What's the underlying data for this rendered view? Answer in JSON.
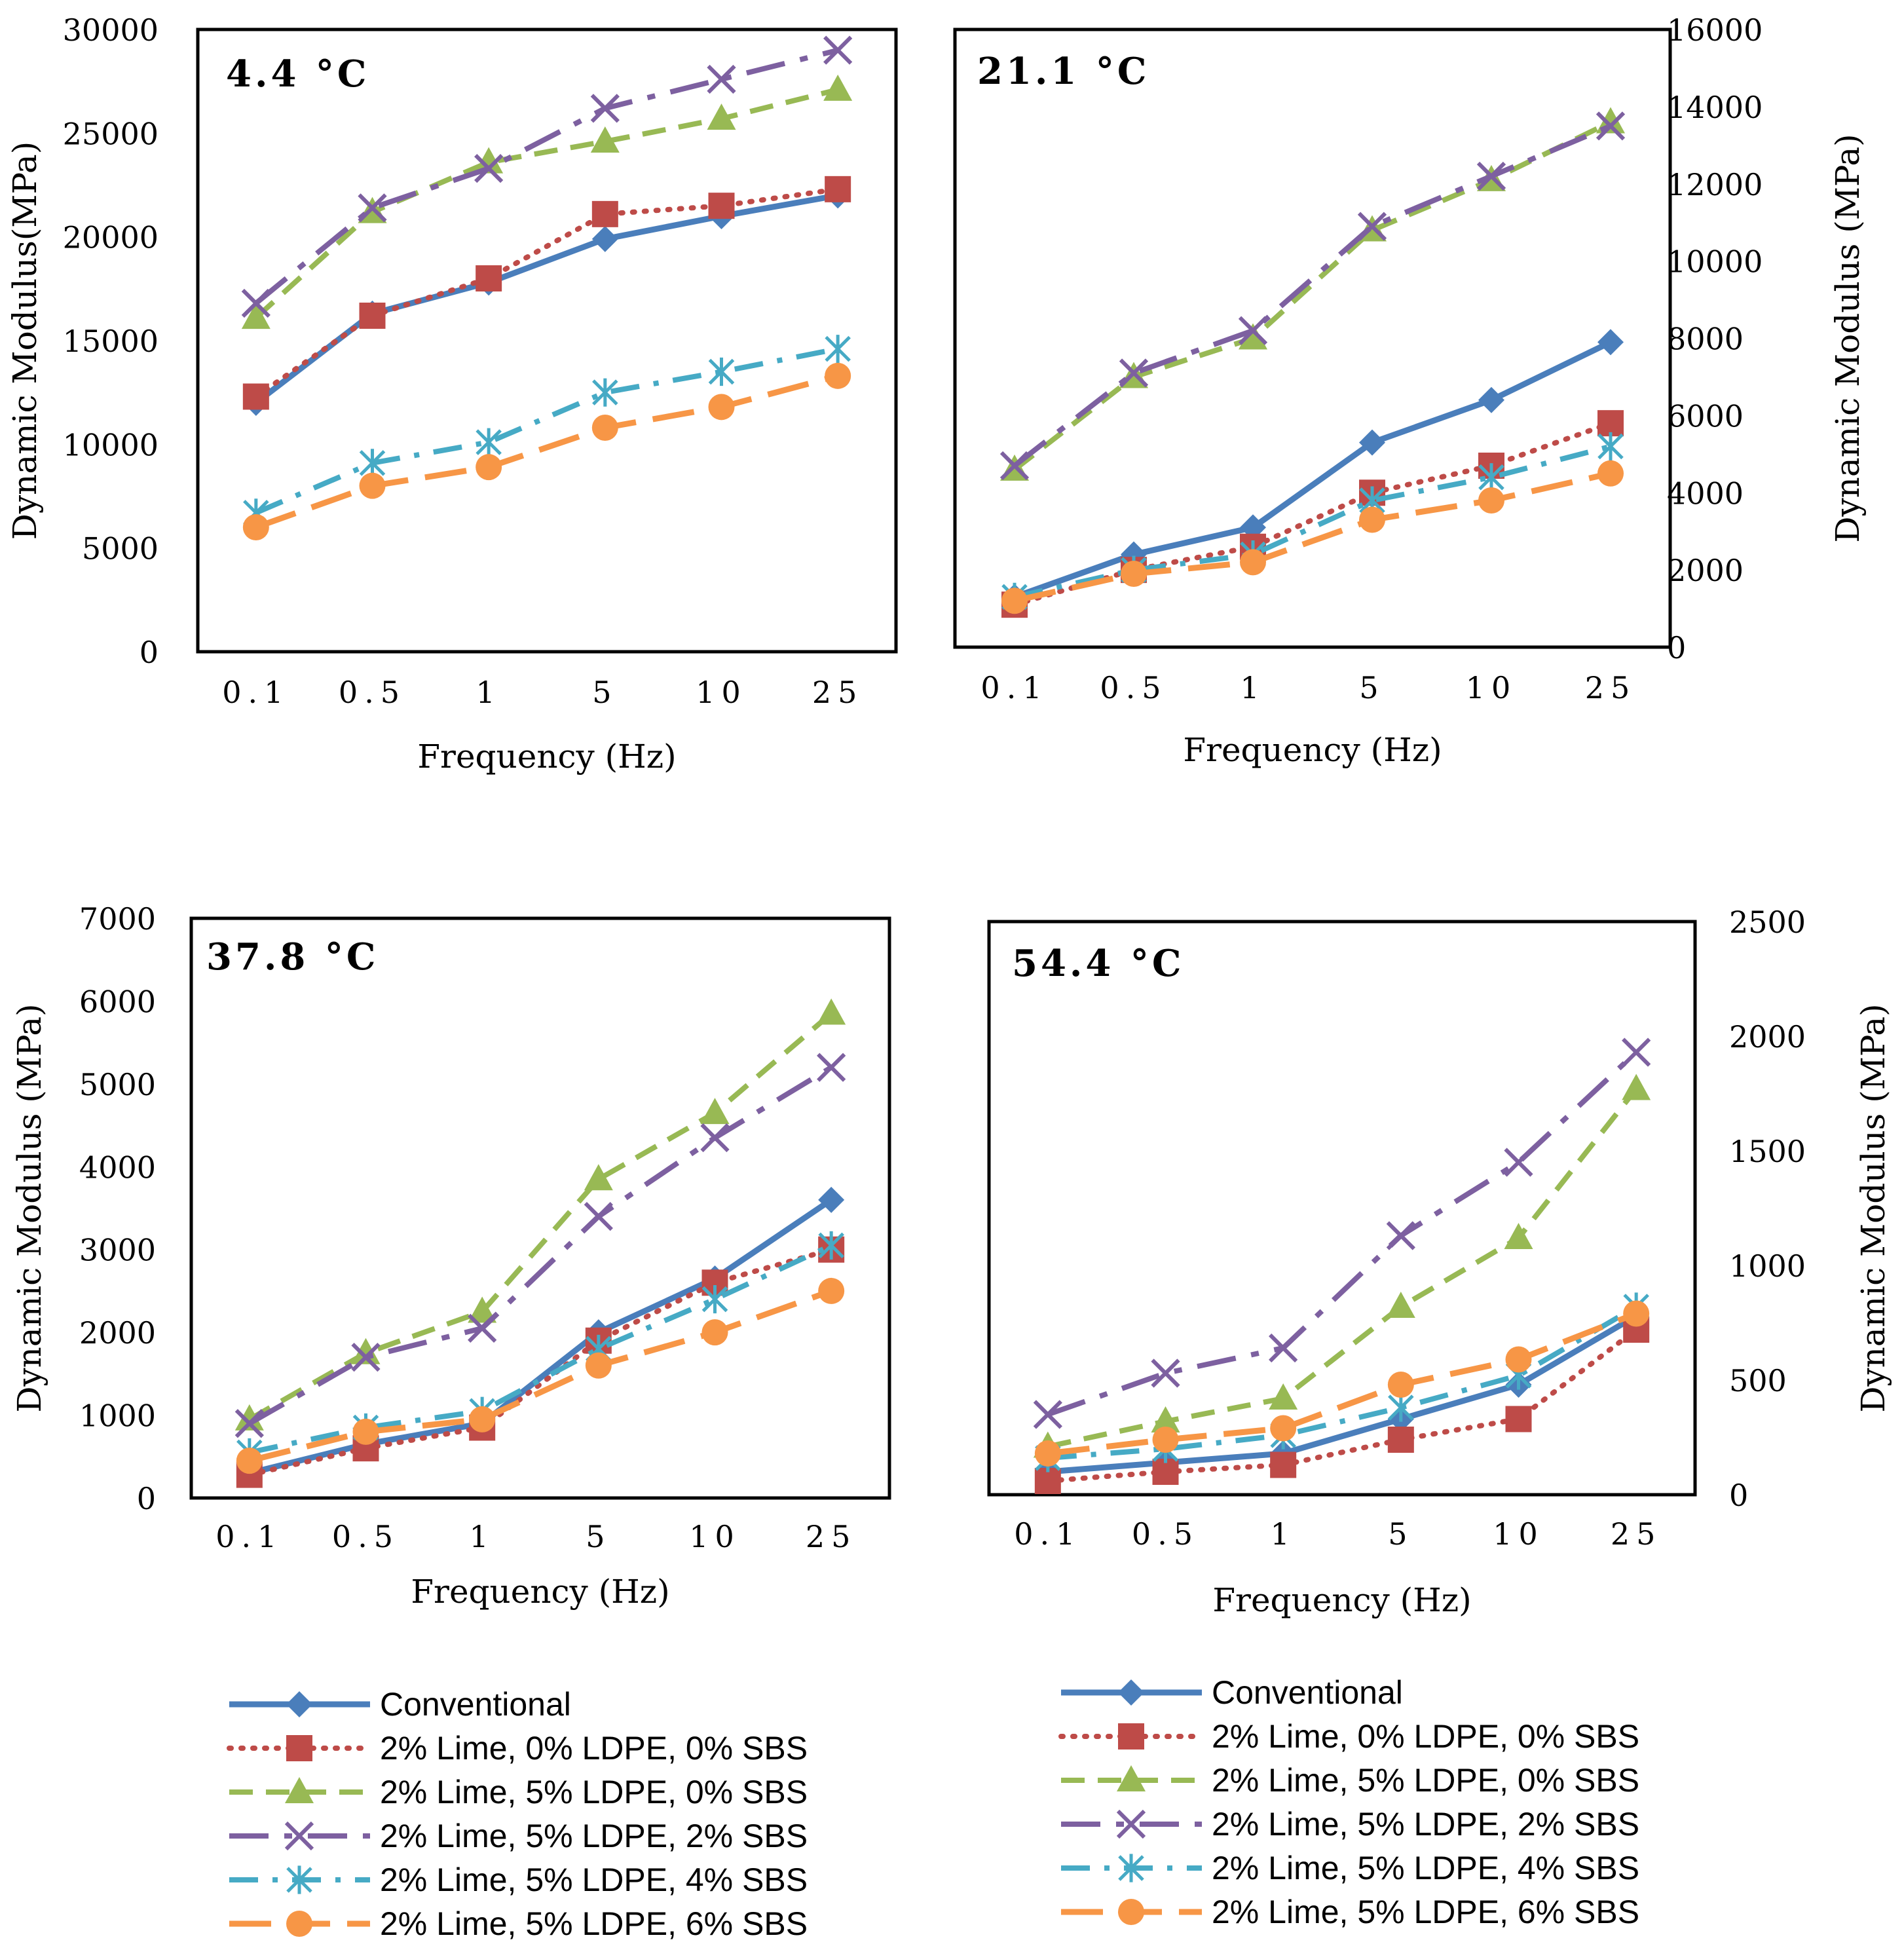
{
  "colors": {
    "conventional": "#4a7ebb",
    "lime_0ldpe": "#be4b48",
    "ldpe5_sbs0": "#98b954",
    "ldpe5_sbs2": "#7d60a0",
    "ldpe5_sbs4": "#46aac5",
    "ldpe5_sbs6": "#f79646",
    "axis": "#000000"
  },
  "chart_data": [
    {
      "type": "line",
      "title": "4.4 °C",
      "xlabel": "Frequency (Hz)",
      "ylabel": "Dynamic Modulus(MPa)",
      "y_axis_side": "left",
      "categories": [
        "0.1",
        "0.5",
        "1",
        "5",
        "10",
        "25"
      ],
      "ylim": [
        0,
        30000
      ],
      "yticks": [
        "0",
        "5000",
        "10000",
        "15000",
        "20000",
        "25000",
        "30000"
      ],
      "series": [
        {
          "name": "Conventional",
          "values": [
            12000,
            16300,
            17800,
            19900,
            21000,
            22000
          ]
        },
        {
          "name": "2% Lime, 0% LDPE, 0% SBS",
          "values": [
            12300,
            16200,
            18000,
            21100,
            21500,
            22300
          ]
        },
        {
          "name": "2% Lime, 5% LDPE, 0% SBS",
          "values": [
            16100,
            21200,
            23600,
            24600,
            25700,
            27100
          ]
        },
        {
          "name": "2% Lime, 5% LDPE, 2% SBS",
          "values": [
            16800,
            21400,
            23300,
            26200,
            27600,
            29000
          ]
        },
        {
          "name": "2% Lime, 5% LDPE, 4% SBS",
          "values": [
            6700,
            9100,
            10100,
            12500,
            13500,
            14600
          ]
        },
        {
          "name": "2% Lime, 5% LDPE, 6% SBS",
          "values": [
            6000,
            8000,
            8900,
            10800,
            11800,
            13300
          ]
        }
      ]
    },
    {
      "type": "line",
      "title": "21.1 °C",
      "xlabel": "Frequency (Hz)",
      "ylabel": "Dynamic Modulus (MPa)",
      "y_axis_side": "right",
      "categories": [
        "0.1",
        "0.5",
        "1",
        "5",
        "10",
        "25"
      ],
      "ylim": [
        0,
        16000
      ],
      "yticks": [
        "0",
        "2000",
        "4000",
        "6000",
        "8000",
        "10000",
        "12000",
        "14000",
        "16000"
      ],
      "series": [
        {
          "name": "Conventional",
          "values": [
            1300,
            2400,
            3100,
            5300,
            6400,
            7900
          ]
        },
        {
          "name": "2% Lime, 0% LDPE, 0% SBS",
          "values": [
            1100,
            2000,
            2600,
            4000,
            4700,
            5800
          ]
        },
        {
          "name": "2% Lime, 5% LDPE, 0% SBS",
          "values": [
            4600,
            7000,
            8000,
            10800,
            12100,
            13600
          ]
        },
        {
          "name": "2% Lime, 5% LDPE, 2% SBS",
          "values": [
            4700,
            7100,
            8200,
            10900,
            12200,
            13500
          ]
        },
        {
          "name": "2% Lime, 5% LDPE, 4% SBS",
          "values": [
            1300,
            2000,
            2400,
            3800,
            4400,
            5200
          ]
        },
        {
          "name": "2% Lime, 5% LDPE, 6% SBS",
          "values": [
            1200,
            1900,
            2200,
            3300,
            3800,
            4500
          ]
        }
      ]
    },
    {
      "type": "line",
      "title": "37.8 °C",
      "xlabel": "Frequency (Hz)",
      "ylabel": "Dynamic Modulus (MPa)",
      "y_axis_side": "left",
      "categories": [
        "0.1",
        "0.5",
        "1",
        "5",
        "10",
        "25"
      ],
      "ylim": [
        0,
        7000
      ],
      "yticks": [
        "0",
        "1000",
        "2000",
        "3000",
        "4000",
        "5000",
        "6000",
        "7000"
      ],
      "series": [
        {
          "name": "Conventional",
          "values": [
            300,
            650,
            900,
            2000,
            2650,
            3600
          ]
        },
        {
          "name": "2% Lime, 0% LDPE, 0% SBS",
          "values": [
            280,
            600,
            850,
            1900,
            2600,
            3000
          ]
        },
        {
          "name": "2% Lime, 5% LDPE, 0% SBS",
          "values": [
            950,
            1750,
            2250,
            3850,
            4650,
            5850
          ]
        },
        {
          "name": "2% Lime, 5% LDPE, 2% SBS",
          "values": [
            900,
            1700,
            2050,
            3400,
            4350,
            5200
          ]
        },
        {
          "name": "2% Lime, 5% LDPE, 4% SBS",
          "values": [
            550,
            850,
            1050,
            1800,
            2400,
            3050
          ]
        },
        {
          "name": "2% Lime, 5% LDPE, 6% SBS",
          "values": [
            450,
            800,
            950,
            1600,
            2000,
            2500
          ]
        }
      ]
    },
    {
      "type": "line",
      "title": "54.4 °C",
      "xlabel": "Frequency (Hz)",
      "ylabel": "Dynamic Modulus (MPa)",
      "y_axis_side": "right",
      "categories": [
        "0.1",
        "0.5",
        "1",
        "5",
        "10",
        "25"
      ],
      "ylim": [
        0,
        2500
      ],
      "yticks": [
        "0",
        "500",
        "1000",
        "1500",
        "2000",
        "2500"
      ],
      "series": [
        {
          "name": "Conventional",
          "values": [
            100,
            140,
            180,
            330,
            480,
            780
          ]
        },
        {
          "name": "2% Lime, 0% LDPE, 0% SBS",
          "values": [
            60,
            100,
            130,
            240,
            330,
            720
          ]
        },
        {
          "name": "2% Lime, 5% LDPE, 0% SBS",
          "values": [
            210,
            320,
            420,
            820,
            1120,
            1770
          ]
        },
        {
          "name": "2% Lime, 5% LDPE, 2% SBS",
          "values": [
            350,
            530,
            640,
            1130,
            1450,
            1930
          ]
        },
        {
          "name": "2% Lime, 5% LDPE, 4% SBS",
          "values": [
            160,
            200,
            260,
            380,
            520,
            820
          ]
        },
        {
          "name": "2% Lime, 5% LDPE, 6% SBS",
          "values": [
            180,
            240,
            290,
            480,
            590,
            790
          ]
        }
      ]
    }
  ],
  "legend": {
    "items": [
      "Conventional",
      "2% Lime, 0% LDPE, 0% SBS",
      "2% Lime, 5% LDPE, 0% SBS",
      "2% Lime, 5% LDPE, 2% SBS",
      "2% Lime, 5% LDPE, 4% SBS",
      "2% Lime, 5% LDPE, 6% SBS"
    ]
  }
}
